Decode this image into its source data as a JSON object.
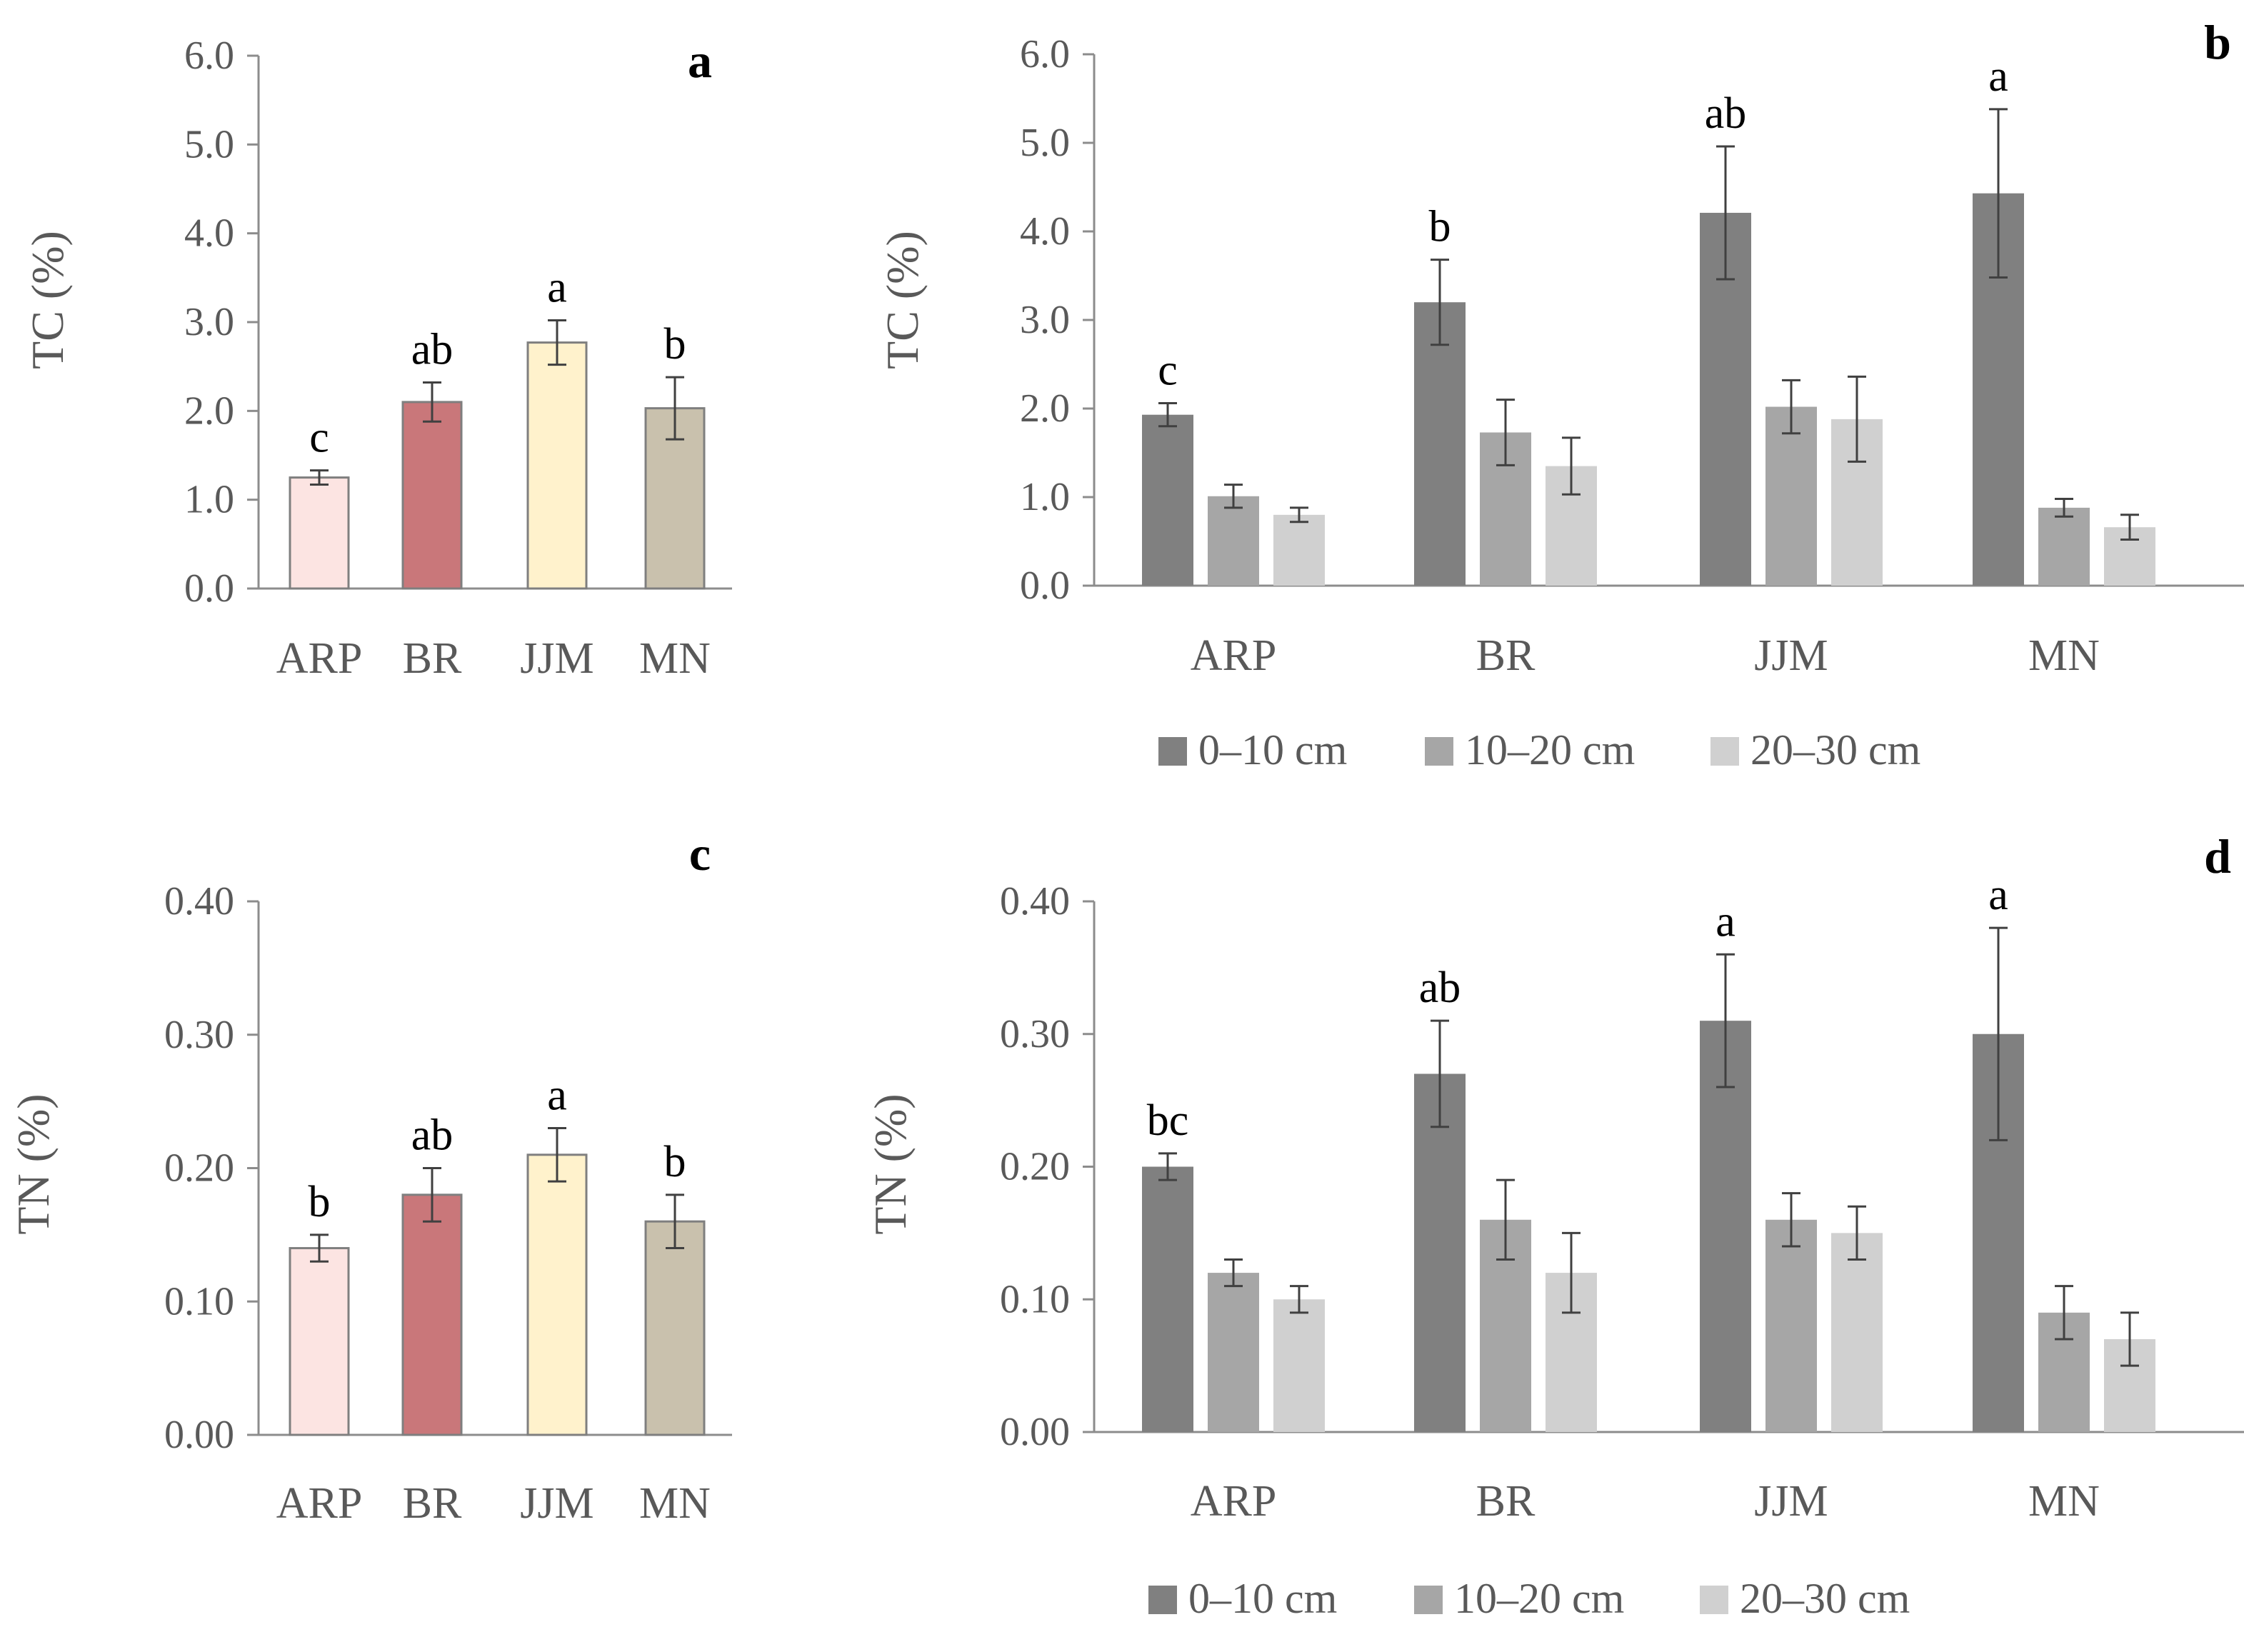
{
  "chart_data": [
    {
      "panel": "a",
      "type": "bar",
      "ylabel": "TC (%)",
      "ylim": [
        0,
        6.0
      ],
      "yticks": [
        "0.0",
        "1.0",
        "2.0",
        "3.0",
        "4.0",
        "5.0",
        "6.0"
      ],
      "categories": [
        "ARP",
        "BR",
        "JJM",
        "MN"
      ],
      "values": [
        1.25,
        2.1,
        2.77,
        2.03
      ],
      "errors": [
        0.08,
        0.22,
        0.25,
        0.35
      ],
      "letters": [
        "c",
        "ab",
        "a",
        "b"
      ],
      "colors": [
        "#fce4e2",
        "#c9777a",
        "#fff2cc",
        "#c9c1ad"
      ]
    },
    {
      "panel": "b",
      "type": "bar",
      "ylabel": "TC (%)",
      "ylim": [
        0,
        6.0
      ],
      "yticks": [
        "0.0",
        "1.0",
        "2.0",
        "3.0",
        "4.0",
        "5.0",
        "6.0"
      ],
      "categories": [
        "ARP",
        "BR",
        "JJM",
        "MN"
      ],
      "series": [
        {
          "name": "0–10 cm",
          "color": "#808080",
          "values": [
            1.93,
            3.2,
            4.21,
            4.43
          ],
          "errors": [
            0.13,
            0.48,
            0.75,
            0.95
          ]
        },
        {
          "name": "10–20 cm",
          "color": "#a6a6a6",
          "values": [
            1.01,
            1.73,
            2.02,
            0.88
          ],
          "errors": [
            0.13,
            0.37,
            0.3,
            0.1
          ]
        },
        {
          "name": "20–30 cm",
          "color": "#d0d0d0",
          "values": [
            0.8,
            1.35,
            1.88,
            0.66
          ],
          "errors": [
            0.08,
            0.32,
            0.48,
            0.14
          ]
        }
      ],
      "letters": [
        "c",
        "b",
        "ab",
        "a"
      ],
      "legend": [
        "0–10 cm",
        "10–20 cm",
        "20–30 cm"
      ]
    },
    {
      "panel": "c",
      "type": "bar",
      "ylabel": "TN  (%)",
      "ylim": [
        0,
        0.4
      ],
      "yticks": [
        "0.00",
        "0.10",
        "0.20",
        "0.30",
        "0.40"
      ],
      "categories": [
        "ARP",
        "BR",
        "JJM",
        "MN"
      ],
      "values": [
        0.14,
        0.18,
        0.21,
        0.16
      ],
      "errors": [
        0.01,
        0.02,
        0.02,
        0.02
      ],
      "letters": [
        "b",
        "ab",
        "a",
        "b"
      ],
      "colors": [
        "#fce4e2",
        "#c9777a",
        "#fff2cc",
        "#c9c1ad"
      ]
    },
    {
      "panel": "d",
      "type": "bar",
      "ylabel": "TN (%)",
      "ylim": [
        0,
        0.4
      ],
      "yticks": [
        "0.00",
        "0.10",
        "0.20",
        "0.30",
        "0.40"
      ],
      "categories": [
        "ARP",
        "BR",
        "JJM",
        "MN"
      ],
      "series": [
        {
          "name": "0–10 cm",
          "color": "#808080",
          "values": [
            0.2,
            0.27,
            0.31,
            0.3
          ],
          "errors": [
            0.01,
            0.04,
            0.05,
            0.08
          ]
        },
        {
          "name": "10–20 cm",
          "color": "#a6a6a6",
          "values": [
            0.12,
            0.16,
            0.16,
            0.09
          ],
          "errors": [
            0.01,
            0.03,
            0.02,
            0.02
          ]
        },
        {
          "name": "20–30 cm",
          "color": "#d0d0d0",
          "values": [
            0.1,
            0.12,
            0.15,
            0.07
          ],
          "errors": [
            0.01,
            0.03,
            0.02,
            0.02
          ]
        }
      ],
      "letters": [
        "bc",
        "ab",
        "a",
        "a"
      ],
      "legend": [
        "0–10 cm",
        "10–20 cm",
        "20–30 cm"
      ]
    }
  ]
}
